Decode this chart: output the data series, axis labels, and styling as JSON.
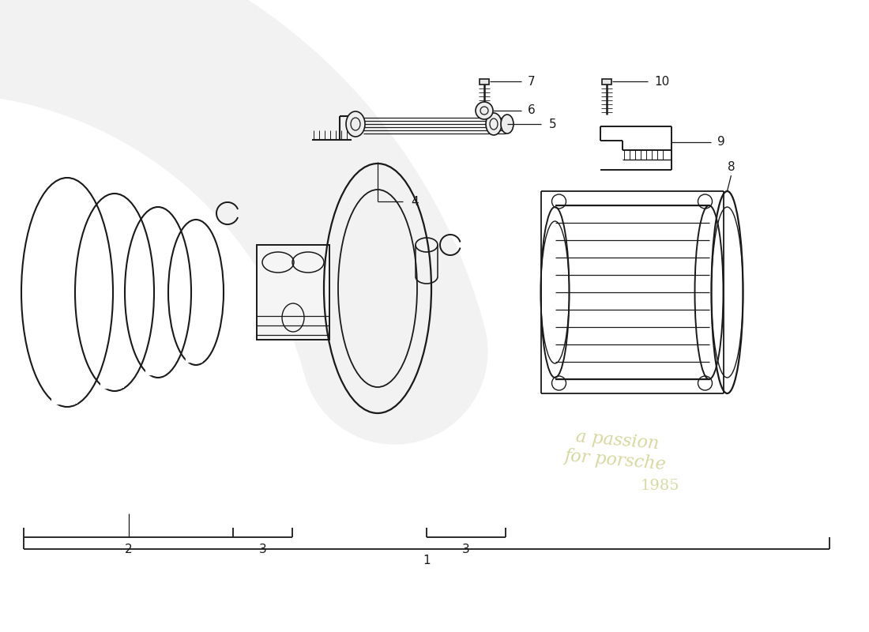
{
  "bg_color": "#ffffff",
  "line_color": "#1a1a1a",
  "watermark_color": "#d4d4a0",
  "lw": 1.2
}
